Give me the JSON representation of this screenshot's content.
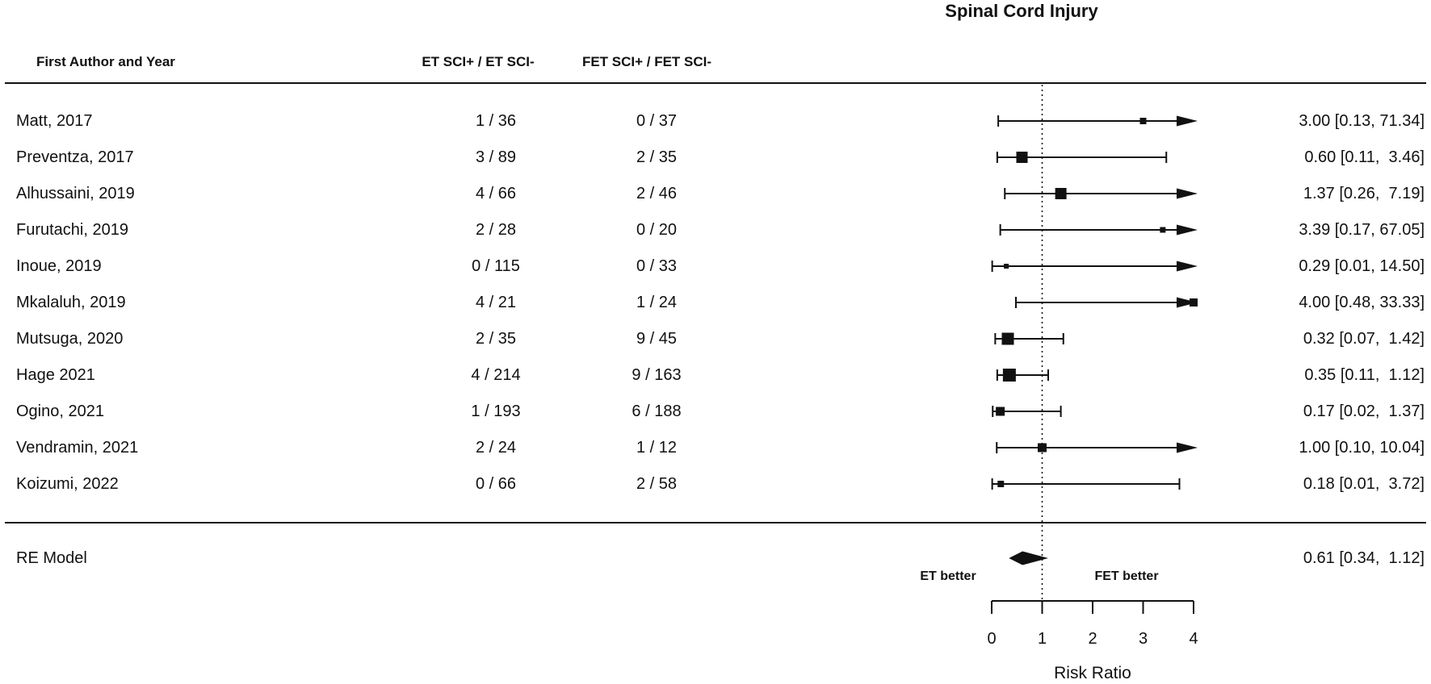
{
  "title": "Spinal Cord Injury",
  "columns": {
    "author": "First Author and Year",
    "et": "ET SCI+ / ET SCI-",
    "fet": "FET SCI+ / FET SCI-"
  },
  "summary_label": "RE Model",
  "direction_labels": {
    "left": "ET better",
    "right": "FET better"
  },
  "colors": {
    "ink": "#111111",
    "background": "#ffffff"
  },
  "chart_data": {
    "type": "forest",
    "title": "Spinal Cord Injury",
    "x_axis": {
      "label": "Risk Ratio",
      "scale": "linear",
      "min": 0,
      "max": 4,
      "ticks": [
        "0",
        "1",
        "2",
        "3",
        "4"
      ],
      "reference_line": 1,
      "grid": false
    },
    "studies": [
      {
        "author": "Matt, 2017",
        "et": "1 / 36",
        "fet": "0 / 37",
        "est": 3.0,
        "lo": 0.13,
        "hi": 71.34,
        "ci_label": "3.00 [0.13, 71.34]",
        "marker_size": 8
      },
      {
        "author": "Preventza, 2017",
        "et": "3 / 89",
        "fet": "2 / 35",
        "est": 0.6,
        "lo": 0.11,
        "hi": 3.46,
        "ci_label": "0.60 [0.11,  3.46]",
        "marker_size": 14
      },
      {
        "author": "Alhussaini, 2019",
        "et": "4 / 66",
        "fet": "2 / 46",
        "est": 1.37,
        "lo": 0.26,
        "hi": 7.19,
        "ci_label": "1.37 [0.26,  7.19]",
        "marker_size": 14
      },
      {
        "author": "Furutachi, 2019",
        "et": "2 / 28",
        "fet": "0 / 20",
        "est": 3.39,
        "lo": 0.17,
        "hi": 67.05,
        "ci_label": "3.39 [0.17, 67.05]",
        "marker_size": 7
      },
      {
        "author": "Inoue, 2019",
        "et": "0 / 115",
        "fet": "0 / 33",
        "est": 0.29,
        "lo": 0.01,
        "hi": 14.5,
        "ci_label": "0.29 [0.01, 14.50]",
        "marker_size": 6
      },
      {
        "author": "Mkalaluh, 2019",
        "et": "4 / 21",
        "fet": "1 / 24",
        "est": 4.0,
        "lo": 0.48,
        "hi": 33.33,
        "ci_label": "4.00 [0.48, 33.33]",
        "marker_size": 10
      },
      {
        "author": "Mutsuga, 2020",
        "et": "2 / 35",
        "fet": "9 / 45",
        "est": 0.32,
        "lo": 0.07,
        "hi": 1.42,
        "ci_label": "0.32 [0.07,  1.42]",
        "marker_size": 15
      },
      {
        "author": "Hage 2021",
        "et": "4 / 214",
        "fet": "9 / 163",
        "est": 0.35,
        "lo": 0.11,
        "hi": 1.12,
        "ci_label": "0.35 [0.11,  1.12]",
        "marker_size": 16
      },
      {
        "author": "Ogino, 2021",
        "et": "1 / 193",
        "fet": "6 / 188",
        "est": 0.17,
        "lo": 0.02,
        "hi": 1.37,
        "ci_label": "0.17 [0.02,  1.37]",
        "marker_size": 11
      },
      {
        "author": "Vendramin, 2021",
        "et": "2 / 24",
        "fet": "1 / 12",
        "est": 1.0,
        "lo": 0.1,
        "hi": 10.04,
        "ci_label": "1.00 [0.10, 10.04]",
        "marker_size": 11
      },
      {
        "author": "Koizumi, 2022",
        "et": "0 / 66",
        "fet": "2 / 58",
        "est": 0.18,
        "lo": 0.01,
        "hi": 3.72,
        "ci_label": "0.18 [0.01,  3.72]",
        "marker_size": 8
      }
    ],
    "summary": {
      "model": "RE Model",
      "est": 0.61,
      "lo": 0.34,
      "hi": 1.12,
      "ci_label": "0.61 [0.34,  1.12]"
    },
    "legend_position": "none"
  }
}
